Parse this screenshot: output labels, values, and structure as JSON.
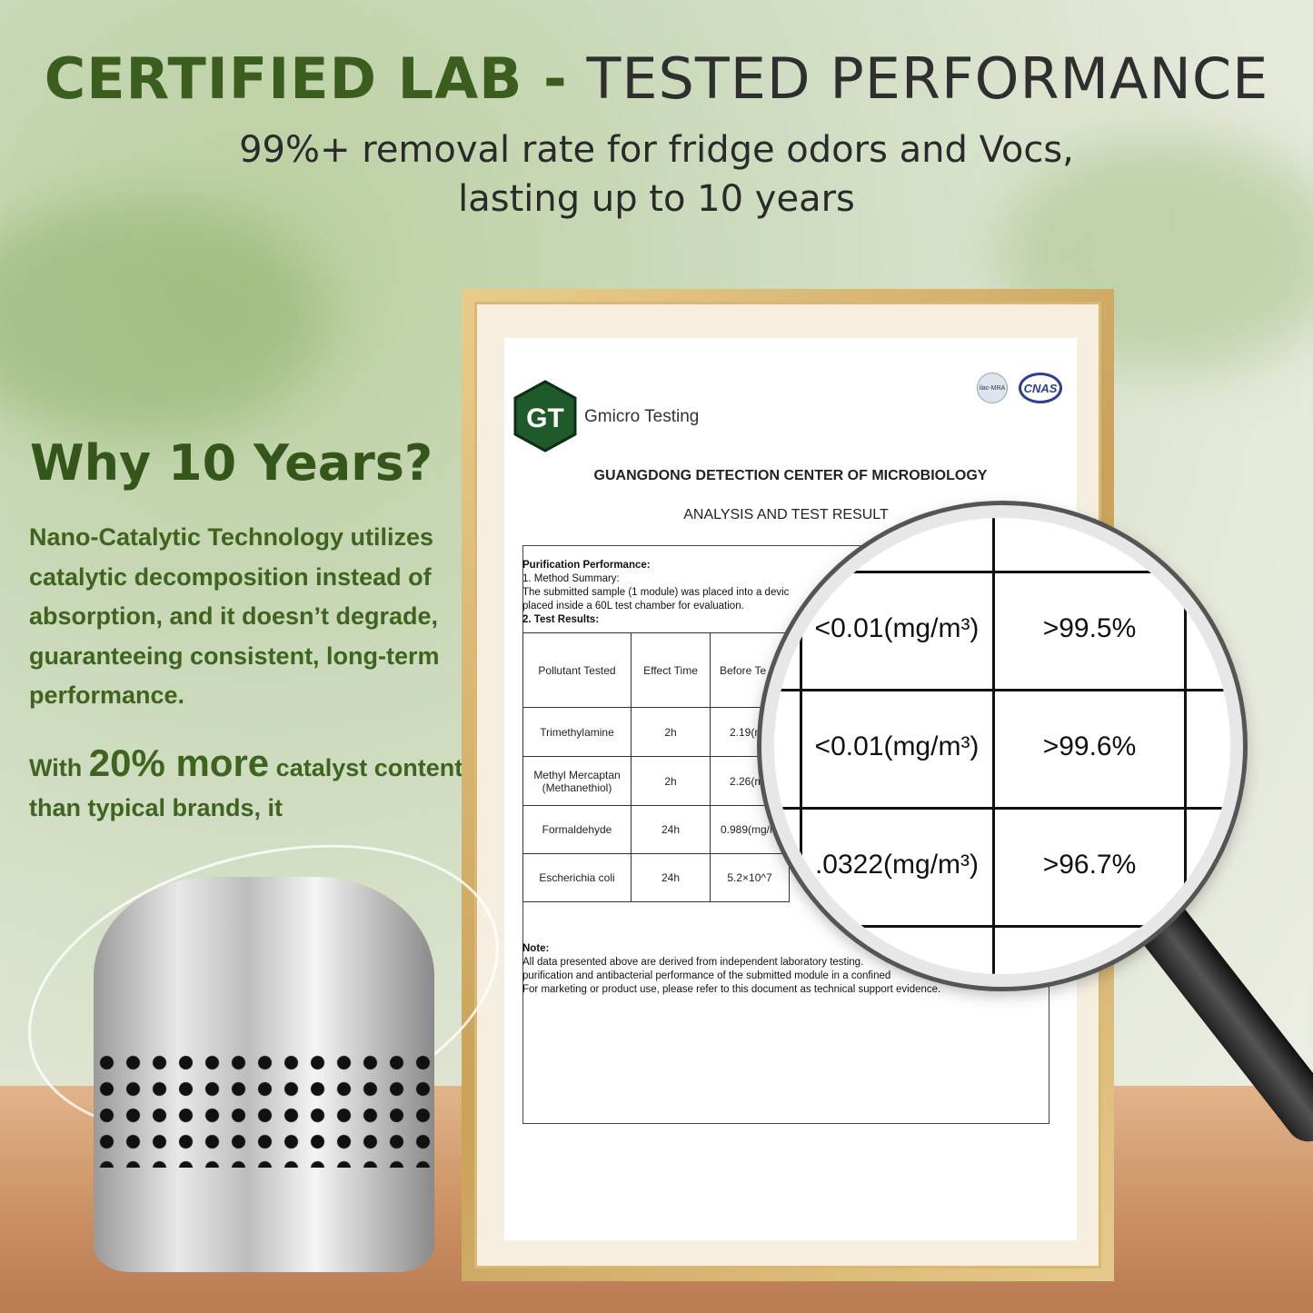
{
  "header": {
    "title_bold": "CERTIFIED LAB -",
    "title_light": " TESTED PERFORMANCE",
    "subtitle_line1": "99%+ removal rate for fridge odors and Vocs,",
    "subtitle_line2": "lasting up to 10 years"
  },
  "left": {
    "heading": "Why 10 Years?",
    "paragraph": "Nano-Catalytic Technology utilizes catalytic decomposition instead of absorption, and it doesn’t degrade, guaranteeing consistent, long-term performance.",
    "p2_start": "With ",
    "p2_big": "20% more",
    "p2_end": " catalyst content than typical brands, it"
  },
  "certificate": {
    "logo_text": "GT",
    "company": "Gmicro Testing",
    "badges": [
      "ilac-MRA",
      "CNAS"
    ],
    "center": "GUANGDONG DETECTION CENTER OF MICROBIOLOGY",
    "title": "ANALYSIS AND TEST RESULT",
    "section": "Purification Performance:",
    "method_heading": "1. Method Summary:",
    "method_text1": "The submitted sample (1 module) was placed into a devic",
    "method_text2": "placed inside a 60L test chamber for evaluation.",
    "results_heading": "2. Test Results:",
    "columns": [
      "Pollutant Tested",
      "Effect Time",
      "Before Te"
    ],
    "rows": [
      {
        "pollutant": "Trimethylamine",
        "time": "2h",
        "before": "2.19(mg"
      },
      {
        "pollutant": "Methyl Mercaptan (Methanethiol)",
        "time": "2h",
        "before": "2.26(mg"
      },
      {
        "pollutant": "Formaldehyde",
        "time": "24h",
        "before": "0.989(mg/m"
      },
      {
        "pollutant": "Escherichia coli",
        "time": "24h",
        "before": "5.2×10^7"
      }
    ],
    "note_heading": "Note:",
    "note1": "All data presented above are derived from independent laboratory testing.",
    "note2": "purification and antibacterial performance of the submitted module in a confined",
    "note3": "For marketing or product use, please refer to this document as technical support evidence."
  },
  "magnified": {
    "rows": [
      {
        "after": "<0.01(mg/m³)",
        "rate": ">99.5%"
      },
      {
        "after": "<0.01(mg/m³)",
        "rate": ">99.6%"
      },
      {
        "after": ".0322(mg/m³)",
        "rate": ">96.7%"
      }
    ]
  },
  "colors": {
    "brand_green": "#3b5e1e",
    "frame_gold": "#c9a25a"
  }
}
